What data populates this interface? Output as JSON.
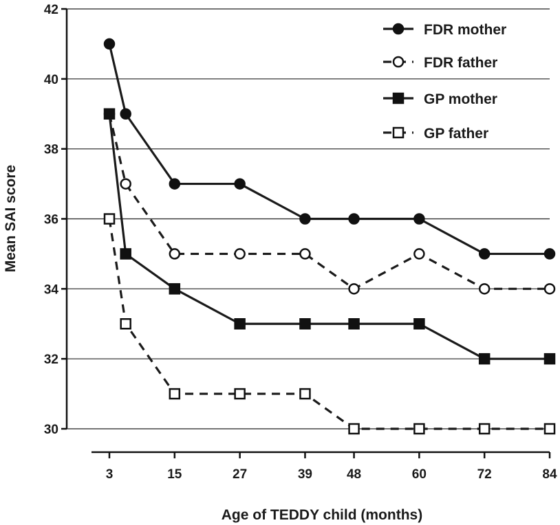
{
  "chart_data": {
    "type": "line",
    "title": "",
    "xlabel": "Age of TEDDY child (months)",
    "ylabel": "Mean SAI score",
    "x_ticks": [
      3,
      15,
      27,
      39,
      48,
      60,
      72,
      84
    ],
    "x_tick_labels": [
      "3",
      "15",
      "27",
      "39",
      "48",
      "60",
      "72",
      "84"
    ],
    "xlim": [
      3,
      84
    ],
    "y_ticks": [
      30,
      32,
      34,
      36,
      38,
      40,
      42
    ],
    "y_tick_labels": [
      "30",
      "32",
      "34",
      "36",
      "38",
      "40",
      "42"
    ],
    "ylim": [
      30,
      42
    ],
    "grid": "horizontal",
    "legend_position": "top-right",
    "series": [
      {
        "name": "FDR mother",
        "line": "solid",
        "marker": "filled-circle",
        "color": "#1a1a1a",
        "x": [
          3,
          6,
          15,
          27,
          39,
          48,
          60,
          72,
          84
        ],
        "y": [
          41,
          39,
          37,
          37,
          36,
          36,
          36,
          35,
          35
        ]
      },
      {
        "name": "FDR father",
        "line": "dashed",
        "marker": "open-circle",
        "color": "#1a1a1a",
        "x": [
          3,
          6,
          15,
          27,
          39,
          48,
          60,
          72,
          84
        ],
        "y": [
          39,
          37,
          35,
          35,
          35,
          34,
          35,
          34,
          34
        ]
      },
      {
        "name": "GP mother",
        "line": "solid",
        "marker": "filled-square",
        "color": "#1a1a1a",
        "x": [
          3,
          6,
          15,
          27,
          39,
          48,
          60,
          72,
          84
        ],
        "y": [
          39,
          35,
          34,
          33,
          33,
          33,
          33,
          32,
          32
        ]
      },
      {
        "name": "GP father",
        "line": "dashed",
        "marker": "open-square",
        "color": "#1a1a1a",
        "x": [
          3,
          6,
          15,
          27,
          39,
          48,
          60,
          72,
          84
        ],
        "y": [
          36,
          33,
          31,
          31,
          31,
          30,
          30,
          30,
          30
        ]
      }
    ]
  }
}
